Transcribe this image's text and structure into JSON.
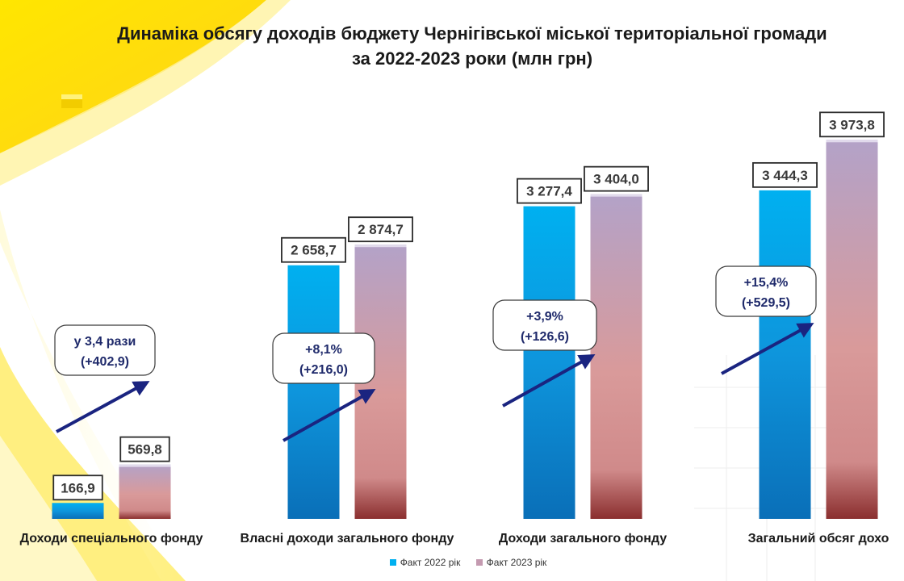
{
  "title_line1": "Динаміка обсягу доходів  бюджету Чернігівської міської територіальної громади",
  "title_line2": "за 2022-2023 роки (млн грн)",
  "colors": {
    "series_2022": "#00b0f0",
    "series_2022_dark": "#0a6fb8",
    "series_2023_top": "#b3a2c8",
    "series_2023_mid": "#d99a9a",
    "series_2023_bottom": "#8b2f2f",
    "arrow": "#1a2480",
    "annotation_text": "#1f2a6b"
  },
  "chart_data": {
    "type": "bar",
    "title": "Динаміка обсягу доходів  бюджету Чернігівської міської територіальної громади за 2022-2023 роки (млн грн)",
    "categories": [
      "Доходи спеціального фонду",
      "Власні доходи загального фонду",
      "Доходи загального фонду",
      "Загальний обсяг дохо"
    ],
    "series": [
      {
        "name": "Факт 2022 рік",
        "values": [
          166.9,
          2658.7,
          3277.4,
          3444.3
        ],
        "labels": [
          "166,9",
          "2 658,7",
          "3 277,4",
          "3 444,3"
        ]
      },
      {
        "name": "Факт 2023 рік",
        "values": [
          569.8,
          2874.7,
          3404.0,
          3973.8
        ],
        "labels": [
          "569,8",
          "2 874,7",
          "3 404,0",
          "3 973,8"
        ]
      }
    ],
    "annotations": [
      {
        "line1": "у 3,4 рази",
        "line2": "(+402,9)"
      },
      {
        "line1": "+8,1%",
        "line2": "(+216,0)"
      },
      {
        "line1": "+3,9%",
        "line2": "(+126,6)"
      },
      {
        "line1": "+15,4%",
        "line2": "(+529,5)"
      }
    ],
    "ylim": [
      0,
      4200
    ],
    "grid": false,
    "legend_position": "bottom"
  }
}
